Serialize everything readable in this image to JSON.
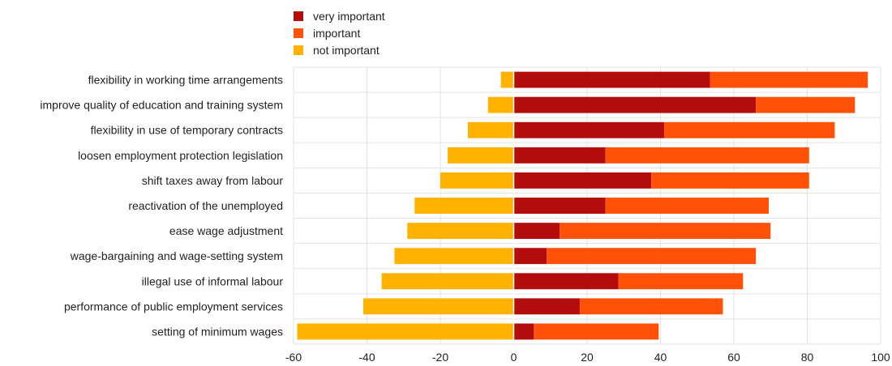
{
  "chart_data": {
    "type": "bar",
    "orientation": "horizontal",
    "stacked": true,
    "categories": [
      "flexibility in working time arrangements",
      "improve quality of education and training system",
      "flexibility in use of temporary contracts",
      "loosen employment protection legislation",
      "shift taxes away from labour",
      "reactivation of the unemployed",
      "ease wage adjustment",
      "wage-bargaining and wage-setting system",
      "illegal use of informal labour",
      "performance of public employment services",
      "setting of minimum wages"
    ],
    "series": [
      {
        "name": "very important",
        "color": "#b30c0c",
        "values": [
          53.5,
          66,
          41,
          25,
          37.5,
          25,
          12.5,
          9,
          28.5,
          18,
          5.5
        ]
      },
      {
        "name": "important",
        "color": "#ff5208",
        "values": [
          43,
          27,
          46.5,
          55.5,
          43,
          44.5,
          57.5,
          57,
          34,
          39,
          34
        ]
      },
      {
        "name": "not important",
        "color": "#ffb300",
        "values": [
          -3.5,
          -7,
          -12.5,
          -18,
          -20,
          -27,
          -29,
          -32.5,
          -36,
          -41,
          -59
        ]
      }
    ],
    "xlim": [
      -60,
      100
    ],
    "xticks": [
      -60,
      -40,
      -20,
      0,
      20,
      40,
      60,
      80,
      100
    ],
    "grid": true,
    "legend_position": "top-left",
    "title": "",
    "xlabel": "",
    "ylabel": ""
  }
}
